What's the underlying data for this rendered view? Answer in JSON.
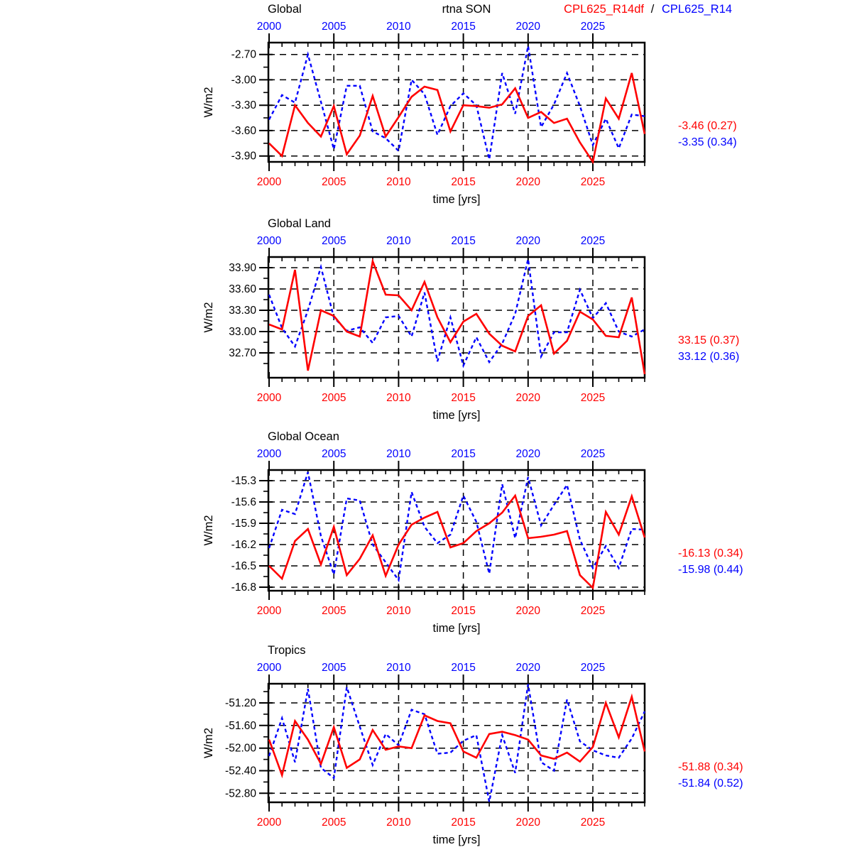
{
  "header": {
    "center_title": "rtna SON",
    "separator": "/",
    "legend": [
      {
        "label": "CPL625_R14df",
        "color": "#ff0000",
        "style": "solid"
      },
      {
        "label": "CPL625_R14",
        "color": "#0000ff",
        "style": "dashed"
      }
    ]
  },
  "axis": {
    "x_label": "time [yrs]",
    "y_label": "W/m2",
    "x_major_years": [
      2000,
      2005,
      2010,
      2015,
      2020,
      2025
    ],
    "x_major_labels": [
      "2000",
      "2005",
      "2010",
      "2015",
      "2020",
      "2025"
    ],
    "top_label_color": "#0000ff",
    "bottom_label_color": "#ff0000",
    "grid": true,
    "years": [
      2000,
      2001,
      2002,
      2003,
      2004,
      2005,
      2006,
      2007,
      2008,
      2009,
      2010,
      2011,
      2012,
      2013,
      2014,
      2015,
      2016,
      2017,
      2018,
      2019,
      2020,
      2021,
      2022,
      2023,
      2024,
      2025,
      2026,
      2027,
      2028,
      2029
    ]
  },
  "chart_data": [
    {
      "type": "line",
      "title": "Global",
      "ylabel": "W/m2",
      "xlabel": "time [yrs]",
      "ylim": [
        -3.97,
        -2.56
      ],
      "y_tick_labels": [
        "-2.70",
        "-3.00",
        "-3.30",
        "-3.60",
        "-3.90"
      ],
      "y_tick_values": [
        -2.7,
        -3.0,
        -3.3,
        -3.6,
        -3.9
      ],
      "series": [
        {
          "name": "CPL625_R14df",
          "color": "#ff0000",
          "style": "solid",
          "values": [
            -3.75,
            -3.9,
            -3.3,
            -3.51,
            -3.67,
            -3.31,
            -3.88,
            -3.66,
            -3.19,
            -3.67,
            -3.44,
            -3.2,
            -3.08,
            -3.12,
            -3.61,
            -3.3,
            -3.31,
            -3.33,
            -3.29,
            -3.1,
            -3.45,
            -3.38,
            -3.51,
            -3.46,
            -3.74,
            -3.97,
            -3.22,
            -3.46,
            -2.92,
            -3.64
          ]
        },
        {
          "name": "CPL625_R14",
          "color": "#0000ff",
          "style": "dashed",
          "values": [
            -3.47,
            -3.18,
            -3.27,
            -2.7,
            -3.26,
            -3.82,
            -3.07,
            -3.07,
            -3.61,
            -3.69,
            -3.84,
            -3.0,
            -3.17,
            -3.65,
            -3.31,
            -3.16,
            -3.3,
            -3.94,
            -2.92,
            -3.4,
            -2.6,
            -3.56,
            -3.29,
            -2.92,
            -3.31,
            -3.77,
            -3.46,
            -3.81,
            -3.41,
            -3.43
          ]
        }
      ],
      "stats": [
        {
          "text": "-3.46 (0.27)",
          "color": "#ff0000"
        },
        {
          "text": "-3.35 (0.34)",
          "color": "#0000ff"
        }
      ]
    },
    {
      "type": "line",
      "title": "Global Land",
      "ylabel": "W/m2",
      "xlabel": "time [yrs]",
      "ylim": [
        32.35,
        34.05
      ],
      "y_tick_labels": [
        "33.90",
        "33.60",
        "33.30",
        "33.00",
        "32.70"
      ],
      "y_tick_values": [
        33.9,
        33.6,
        33.3,
        33.0,
        32.7
      ],
      "series": [
        {
          "name": "CPL625_R14df",
          "color": "#ff0000",
          "style": "solid",
          "values": [
            33.1,
            33.03,
            33.87,
            32.45,
            33.3,
            33.22,
            33.0,
            32.93,
            33.99,
            33.52,
            33.51,
            33.3,
            33.7,
            33.2,
            32.85,
            33.14,
            33.25,
            32.97,
            32.8,
            32.72,
            33.22,
            33.37,
            32.69,
            32.87,
            33.28,
            33.17,
            32.94,
            32.92,
            33.48,
            32.4
          ]
        },
        {
          "name": "CPL625_R14",
          "color": "#0000ff",
          "style": "dashed",
          "values": [
            33.52,
            33.05,
            32.79,
            33.3,
            33.91,
            33.2,
            33.01,
            33.06,
            32.84,
            33.2,
            33.22,
            32.93,
            33.55,
            32.58,
            33.2,
            32.52,
            32.92,
            32.57,
            32.83,
            33.25,
            34.02,
            32.65,
            32.99,
            32.99,
            33.59,
            33.19,
            33.4,
            33.0,
            32.93,
            33.03
          ]
        }
      ],
      "stats": [
        {
          "text": "33.15 (0.37)",
          "color": "#ff0000"
        },
        {
          "text": "33.12 (0.36)",
          "color": "#0000ff"
        }
      ]
    },
    {
      "type": "line",
      "title": "Global Ocean",
      "ylabel": "W/m2",
      "xlabel": "time [yrs]",
      "ylim": [
        -16.85,
        -15.15
      ],
      "y_tick_labels": [
        "-15.3",
        "-15.6",
        "-15.9",
        "-16.2",
        "-16.5",
        "-16.8"
      ],
      "y_tick_values": [
        -15.3,
        -15.6,
        -15.9,
        -16.2,
        -16.5,
        -16.8
      ],
      "series": [
        {
          "name": "CPL625_R14df",
          "color": "#ff0000",
          "style": "solid",
          "values": [
            -16.5,
            -16.68,
            -16.15,
            -15.98,
            -16.48,
            -15.95,
            -16.63,
            -16.4,
            -16.07,
            -16.64,
            -16.2,
            -15.92,
            -15.82,
            -15.74,
            -16.24,
            -16.18,
            -16.01,
            -15.9,
            -15.75,
            -15.51,
            -16.11,
            -16.09,
            -16.06,
            -16.01,
            -16.63,
            -16.81,
            -15.74,
            -16.06,
            -15.52,
            -16.1
          ]
        },
        {
          "name": "CPL625_R14",
          "color": "#0000ff",
          "style": "dashed",
          "values": [
            -16.25,
            -15.71,
            -15.77,
            -15.18,
            -16.08,
            -16.62,
            -15.55,
            -15.58,
            -16.2,
            -16.45,
            -16.7,
            -15.46,
            -15.95,
            -16.18,
            -16.06,
            -15.51,
            -15.88,
            -16.61,
            -15.35,
            -16.11,
            -15.25,
            -15.93,
            -15.64,
            -15.36,
            -16.13,
            -16.53,
            -16.22,
            -16.53,
            -15.98,
            -15.99
          ]
        }
      ],
      "stats": [
        {
          "text": "-16.13 (0.34)",
          "color": "#ff0000"
        },
        {
          "text": "-15.98 (0.44)",
          "color": "#0000ff"
        }
      ]
    },
    {
      "type": "line",
      "title": "Tropics",
      "ylabel": "W/m2",
      "xlabel": "time [yrs]",
      "ylim": [
        -52.96,
        -50.86
      ],
      "y_tick_labels": [
        "-51.20",
        "-51.60",
        "-52.00",
        "-52.40",
        "-52.80"
      ],
      "y_tick_values": [
        -51.2,
        -51.6,
        -52.0,
        -52.4,
        -52.8
      ],
      "series": [
        {
          "name": "CPL625_R14df",
          "color": "#ff0000",
          "style": "solid",
          "values": [
            -51.85,
            -52.48,
            -51.52,
            -51.85,
            -52.28,
            -51.63,
            -52.35,
            -52.2,
            -51.68,
            -52.03,
            -51.97,
            -52.0,
            -51.42,
            -51.52,
            -51.56,
            -52.06,
            -52.17,
            -51.75,
            -51.71,
            -51.77,
            -51.85,
            -52.13,
            -52.19,
            -52.08,
            -52.24,
            -51.98,
            -51.2,
            -51.81,
            -51.09,
            -52.06
          ]
        },
        {
          "name": "CPL625_R14",
          "color": "#0000ff",
          "style": "dashed",
          "values": [
            -52.14,
            -51.47,
            -52.25,
            -50.95,
            -52.35,
            -52.53,
            -50.92,
            -51.62,
            -52.3,
            -51.75,
            -51.95,
            -51.32,
            -51.4,
            -52.1,
            -52.08,
            -51.87,
            -51.77,
            -52.95,
            -51.77,
            -52.44,
            -50.87,
            -52.25,
            -52.4,
            -51.14,
            -51.88,
            -52.04,
            -52.13,
            -52.17,
            -51.83,
            -51.35
          ]
        }
      ],
      "stats": [
        {
          "text": "-51.88 (0.34)",
          "color": "#ff0000"
        },
        {
          "text": "-51.84 (0.52)",
          "color": "#0000ff"
        }
      ]
    }
  ]
}
